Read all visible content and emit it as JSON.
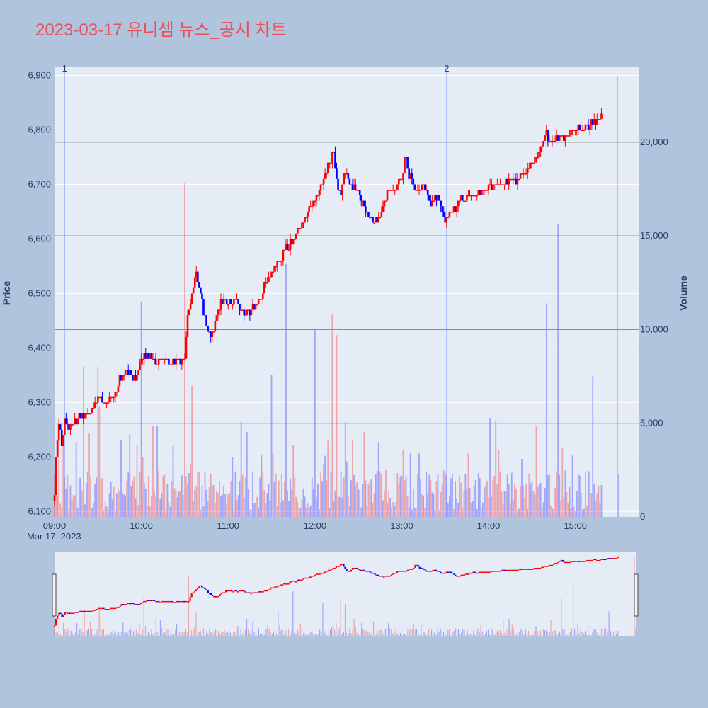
{
  "chart_data": {
    "type": "candlestick",
    "title": "2023-03-17 유니셈 뉴스_공시 차트",
    "ylabel": "Price",
    "y2label": "Volume",
    "date_label": "Mar 17, 2023",
    "x_ticks": [
      "09:00",
      "10:00",
      "11:00",
      "12:00",
      "13:00",
      "14:00",
      "15:00"
    ],
    "price_ticks": [
      "6,100",
      "6,200",
      "6,300",
      "6,400",
      "6,500",
      "6,600",
      "6,700",
      "6,800",
      "6,900"
    ],
    "volume_ticks": [
      "0",
      "5,000",
      "10,000",
      "15,000",
      "20,000"
    ],
    "price_range": [
      6090,
      6915
    ],
    "volume_range": [
      0,
      24000
    ],
    "time_range": [
      "09:00",
      "15:30"
    ],
    "price_path": [
      [
        "09:00",
        6130
      ],
      [
        "09:01",
        6200
      ],
      [
        "09:03",
        6260
      ],
      [
        "09:05",
        6220
      ],
      [
        "09:07",
        6270
      ],
      [
        "09:10",
        6250
      ],
      [
        "09:15",
        6270
      ],
      [
        "09:20",
        6280
      ],
      [
        "09:25",
        6280
      ],
      [
        "09:30",
        6310
      ],
      [
        "09:35",
        6300
      ],
      [
        "09:40",
        6310
      ],
      [
        "09:45",
        6340
      ],
      [
        "09:50",
        6360
      ],
      [
        "09:55",
        6340
      ],
      [
        "10:00",
        6380
      ],
      [
        "10:05",
        6390
      ],
      [
        "10:10",
        6370
      ],
      [
        "10:15",
        6380
      ],
      [
        "10:20",
        6370
      ],
      [
        "10:25",
        6380
      ],
      [
        "10:30",
        6380
      ],
      [
        "10:32",
        6460
      ],
      [
        "10:35",
        6500
      ],
      [
        "10:38",
        6540
      ],
      [
        "10:42",
        6480
      ],
      [
        "10:45",
        6440
      ],
      [
        "10:48",
        6420
      ],
      [
        "10:50",
        6440
      ],
      [
        "10:55",
        6490
      ],
      [
        "11:00",
        6480
      ],
      [
        "11:05",
        6490
      ],
      [
        "11:10",
        6470
      ],
      [
        "11:15",
        6470
      ],
      [
        "11:20",
        6480
      ],
      [
        "11:25",
        6510
      ],
      [
        "11:30",
        6540
      ],
      [
        "11:35",
        6560
      ],
      [
        "11:40",
        6580
      ],
      [
        "11:45",
        6600
      ],
      [
        "11:50",
        6620
      ],
      [
        "11:55",
        6650
      ],
      [
        "12:00",
        6680
      ],
      [
        "12:05",
        6700
      ],
      [
        "12:10",
        6740
      ],
      [
        "12:13",
        6760
      ],
      [
        "12:15",
        6700
      ],
      [
        "12:18",
        6680
      ],
      [
        "12:20",
        6720
      ],
      [
        "12:25",
        6700
      ],
      [
        "12:30",
        6690
      ],
      [
        "12:35",
        6650
      ],
      [
        "12:40",
        6630
      ],
      [
        "12:45",
        6640
      ],
      [
        "12:50",
        6680
      ],
      [
        "12:55",
        6690
      ],
      [
        "13:00",
        6710
      ],
      [
        "13:02",
        6750
      ],
      [
        "13:05",
        6720
      ],
      [
        "13:10",
        6690
      ],
      [
        "13:15",
        6700
      ],
      [
        "13:20",
        6660
      ],
      [
        "13:25",
        6680
      ],
      [
        "13:30",
        6630
      ],
      [
        "13:35",
        6650
      ],
      [
        "13:40",
        6670
      ],
      [
        "13:45",
        6680
      ],
      [
        "13:50",
        6680
      ],
      [
        "13:55",
        6690
      ],
      [
        "14:00",
        6700
      ],
      [
        "14:05",
        6700
      ],
      [
        "14:10",
        6700
      ],
      [
        "14:15",
        6710
      ],
      [
        "14:20",
        6710
      ],
      [
        "14:25",
        6720
      ],
      [
        "14:30",
        6740
      ],
      [
        "14:35",
        6760
      ],
      [
        "14:40",
        6790
      ],
      [
        "14:45",
        6780
      ],
      [
        "14:50",
        6790
      ],
      [
        "14:55",
        6790
      ],
      [
        "15:00",
        6800
      ],
      [
        "15:05",
        6800
      ],
      [
        "15:10",
        6810
      ],
      [
        "15:15",
        6820
      ],
      [
        "15:18",
        6830
      ]
    ],
    "volume_spikes": [
      [
        "09:15",
        4000
      ],
      [
        "09:20",
        8000
      ],
      [
        "09:30",
        8000
      ],
      [
        "10:00",
        11500
      ],
      [
        "10:30",
        17800
      ],
      [
        "10:35",
        7000
      ],
      [
        "11:30",
        7600
      ],
      [
        "11:40",
        13500
      ],
      [
        "12:00",
        10000
      ],
      [
        "12:12",
        10800
      ],
      [
        "12:15",
        9700
      ],
      [
        "14:40",
        11400
      ],
      [
        "14:48",
        15600
      ],
      [
        "15:12",
        7500
      ],
      [
        "15:29",
        23500
      ]
    ],
    "annotations": [
      {
        "label": "1",
        "time": "09:07"
      },
      {
        "label": "2",
        "time": "13:31"
      }
    ],
    "annotation_lines": [
      {
        "label": "1",
        "time": "09:07"
      },
      {
        "label": "2",
        "time": "13:31"
      }
    ],
    "reference_volumes": [
      5000,
      10000,
      15000,
      20000
    ],
    "colors": {
      "up": "#ff0000",
      "down": "#0000ff",
      "plot_bg": "#e5ecf6",
      "page_bg": "#b0c4de",
      "title": "#e8505b",
      "grid": "#ffffff",
      "ref_line": "#7f7f7f"
    }
  }
}
